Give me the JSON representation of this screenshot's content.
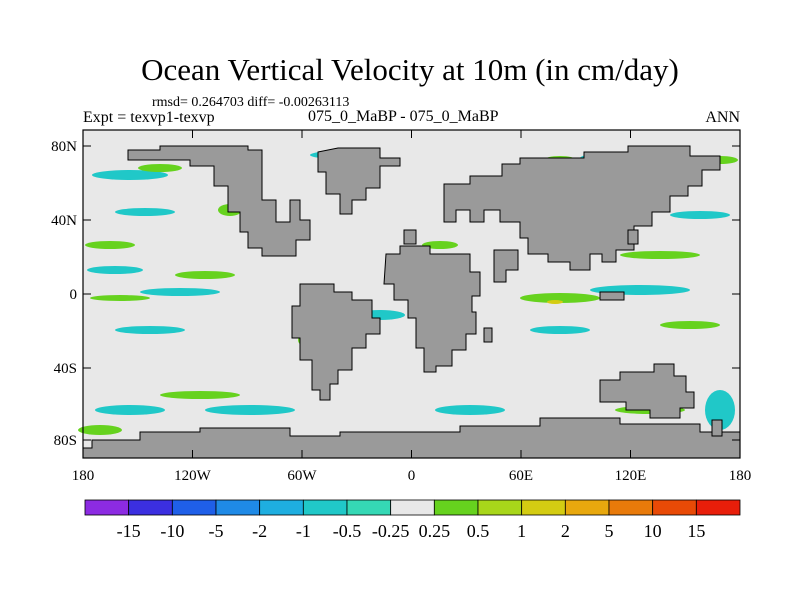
{
  "title": "Ocean Vertical Velocity at 10m (in cm/day)",
  "stats": "rmsd= 0.264703 diff= -0.00263113",
  "left_label": "Expt = texvp1-texvp",
  "center_label": "075_0_MaBP - 075_0_MaBP",
  "right_label": "ANN",
  "lat_ticks": [
    "80N",
    "40N",
    "0",
    "40S",
    "80S"
  ],
  "lon_ticks": [
    "180",
    "120W",
    "60W",
    "0",
    "60E",
    "120E",
    "180"
  ],
  "colorbar": {
    "labels": [
      "-15",
      "-10",
      "-5",
      "-2",
      "-1",
      "-0.5",
      "-0.25",
      "0.25",
      "0.5",
      "1",
      "2",
      "5",
      "10",
      "15"
    ],
    "colors": [
      "#8c2be2",
      "#3b2fe0",
      "#1f5fe8",
      "#1f8ae6",
      "#1eaee0",
      "#20c8c8",
      "#35d8b5",
      "#e8e8e8",
      "#66d21e",
      "#a8d61a",
      "#d4cc12",
      "#e8a80e",
      "#e87a0a",
      "#e84a06",
      "#e81e0a"
    ]
  },
  "colors": {
    "land": "#9a9a9a",
    "ocean_neutral": "#e8e8e8",
    "up_weak": "#66d21e",
    "down_weak": "#20c8c8"
  }
}
